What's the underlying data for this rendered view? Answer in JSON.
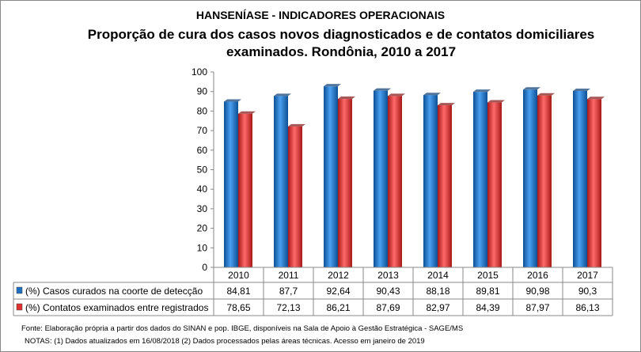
{
  "chart_data": {
    "type": "bar",
    "title": "HANSENÍASE - INDICADORES OPERACIONAIS",
    "subtitle": "Proporção de cura dos casos novos diagnosticados e de contatos domiciliares examinados.  Rondônia, 2010 a 2017",
    "categories": [
      "2010",
      "2011",
      "2012",
      "2013",
      "2014",
      "2015",
      "2016",
      "2017"
    ],
    "ylim": [
      0,
      100
    ],
    "yticks": [
      0,
      10,
      20,
      30,
      40,
      50,
      60,
      70,
      80,
      90,
      100
    ],
    "grid": false,
    "legend": "data-table",
    "series": [
      {
        "name": "(%) Casos curados na coorte de detecção",
        "color": "#1f6fc0",
        "values": [
          84.81,
          87.7,
          92.64,
          90.43,
          88.18,
          89.81,
          90.98,
          90.3
        ],
        "labels": [
          "84,81",
          "87,7",
          "92,64",
          "90,43",
          "88,18",
          "89,81",
          "90,98",
          "90,3"
        ]
      },
      {
        "name": "(%) Contatos examinados entre registrados",
        "color": "#e03030",
        "values": [
          78.65,
          72.13,
          86.21,
          87.69,
          82.97,
          84.39,
          87.97,
          86.13
        ],
        "labels": [
          "78,65",
          "72,13",
          "86,21",
          "87,69",
          "82,97",
          "84,39",
          "87,97",
          "86,13"
        ]
      }
    ]
  },
  "notes": {
    "source": "Fonte:  Elaboração própria a partir dos dados do  SINAN  e  pop. IBGE, disponíveis na Sala de Apoio à Gestão Estratégica - SAGE/MS",
    "notes": "NOTAS: (1) Dados atualizados em 16/08/2018 (2) Dados processados pelas áreas técnicas. Acesso em janeiro de 2019"
  }
}
